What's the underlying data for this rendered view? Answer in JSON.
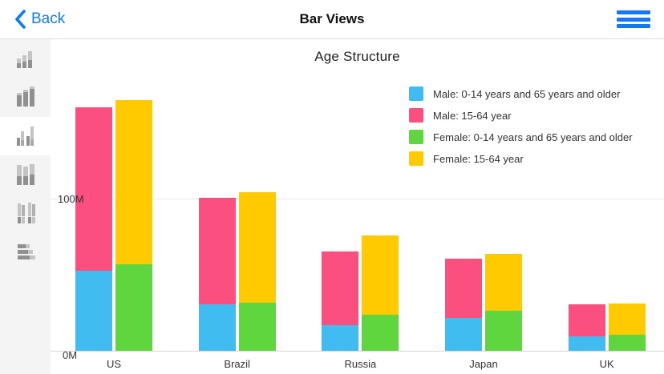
{
  "navbar": {
    "back_label": "Back",
    "title": "Bar Views",
    "accent_color": "#0e7bf7"
  },
  "sidebar": {
    "selected_index": 2,
    "items": [
      {
        "icon": "grouped-bar-chart-thumbnail-icon"
      },
      {
        "icon": "stacked-bar-chart-thumbnail-icon"
      },
      {
        "icon": "bar-chart-thumbnail-icon"
      },
      {
        "icon": "tall-stacked-bar-chart-thumbnail-icon"
      },
      {
        "icon": "split-bar-chart-thumbnail-icon"
      },
      {
        "icon": "horizontal-bar-chart-thumbnail-icon"
      }
    ]
  },
  "chart": {
    "title": "Age Structure",
    "y_ticks": [
      "0M",
      "100M"
    ],
    "grid_color": "#e9e9e9",
    "axis_color": "#d6d6d6"
  },
  "chart_data": {
    "type": "bar",
    "stacked": true,
    "title": "Age Structure",
    "categories": [
      "US",
      "Brazil",
      "Russia",
      "Japan",
      "UK"
    ],
    "series": [
      {
        "name": "Male: 0-14 years and 65 years and older",
        "color": "#40BCF0",
        "stack": "male",
        "values": [
          52.6,
          30.5,
          16.8,
          21.8,
          9.5
        ]
      },
      {
        "name": "Male: 15-64 year",
        "color": "#FB4F80",
        "stack": "male",
        "values": [
          107.4,
          70.3,
          48.4,
          38.7,
          21.1
        ]
      },
      {
        "name": "Female: 0-14 years and 65 years and older",
        "color": "#5FD53E",
        "stack": "female",
        "values": [
          56.8,
          31.6,
          23.9,
          26.3,
          10.5
        ]
      },
      {
        "name": "Female: 15-64 year",
        "color": "#FFCA00",
        "stack": "female",
        "values": [
          107.9,
          72.4,
          51.8,
          37.6,
          20.5
        ]
      }
    ],
    "xlabel": "",
    "ylabel": "",
    "ylim": [
      0,
      200
    ],
    "yticks_visible": [
      "0M",
      "100M"
    ],
    "grid": true,
    "legend_position": "top-right"
  }
}
